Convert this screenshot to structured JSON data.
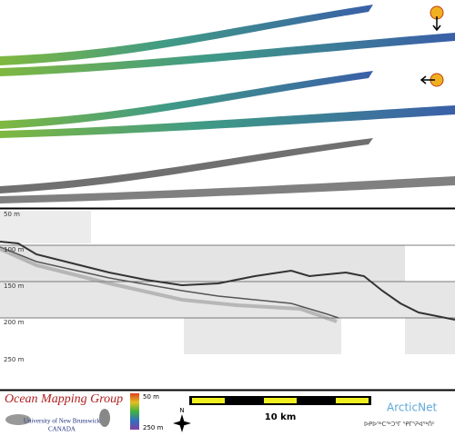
{
  "depth_labels": [
    "50 m",
    "100 m",
    "150 m",
    "200 m",
    "250 m"
  ],
  "legend": {
    "org": "Ocean Mapping Group",
    "university": "University of New Brunswick",
    "country": "CANADA",
    "colorbar_top": "50 m",
    "colorbar_bottom": "250 m",
    "north": "N",
    "scale": "10 km",
    "partner": "ArcticNet",
    "partner_syllabics": "ᐅᑭᐅᖅᑕᖅᑐᕐᒥ ᕿᒥᕐᕈᐊᖅᑏᑦ"
  }
}
